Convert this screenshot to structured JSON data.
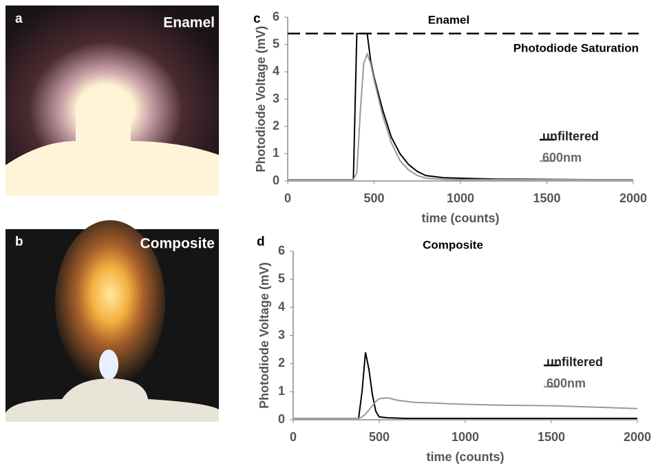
{
  "photos": [
    {
      "label": "a",
      "title": "Enamel"
    },
    {
      "label": "b",
      "title": "Composite"
    }
  ],
  "chart_data": [
    {
      "type": "line",
      "label": "c",
      "title": "Enamel",
      "x_label": "time (counts)",
      "y_label": "Photodiode Voltage (mV)",
      "saturation": {
        "value": 5.4,
        "label": "Photodiode Saturation"
      },
      "x": [
        0,
        380,
        400,
        420,
        440,
        460,
        480,
        500,
        550,
        600,
        650,
        700,
        750,
        800,
        900,
        1000,
        1200,
        1500,
        1750,
        2000
      ],
      "series": [
        {
          "name": "unfiltered",
          "color": "#000000",
          "values": [
            0.05,
            0.05,
            5.4,
            5.4,
            5.4,
            5.4,
            4.4,
            3.8,
            2.6,
            1.6,
            1.0,
            0.6,
            0.35,
            0.2,
            0.12,
            0.1,
            0.07,
            0.06,
            0.05,
            0.05
          ]
        },
        {
          "name": "600nm",
          "color": "#999999",
          "values": [
            0.05,
            0.05,
            0.3,
            2.5,
            4.3,
            4.65,
            4.3,
            3.7,
            2.4,
            1.4,
            0.75,
            0.4,
            0.2,
            0.1,
            0.06,
            0.05,
            0.05,
            0.05,
            0.05,
            0.05
          ]
        }
      ],
      "xlim": [
        0,
        2000
      ],
      "xticks": [
        0,
        500,
        1000,
        1500,
        2000
      ],
      "ylim": [
        0,
        6
      ],
      "yticks": [
        0,
        1,
        2,
        3,
        4,
        5,
        6
      ]
    },
    {
      "type": "line",
      "label": "d",
      "title": "Composite",
      "x_label": "time (counts)",
      "y_label": "Photodiode Voltage (mV)",
      "x": [
        0,
        380,
        400,
        420,
        440,
        460,
        480,
        500,
        550,
        600,
        650,
        700,
        750,
        800,
        900,
        1000,
        1200,
        1500,
        1750,
        2000
      ],
      "series": [
        {
          "name": "unfiltered",
          "color": "#000000",
          "values": [
            0.05,
            0.05,
            1.0,
            2.4,
            1.8,
            0.9,
            0.3,
            0.1,
            0.07,
            0.06,
            0.05,
            0.05,
            0.05,
            0.05,
            0.05,
            0.05,
            0.05,
            0.05,
            0.05,
            0.05
          ]
        },
        {
          "name": "600nm",
          "color": "#999999",
          "values": [
            0.05,
            0.05,
            0.1,
            0.2,
            0.35,
            0.5,
            0.65,
            0.75,
            0.78,
            0.7,
            0.66,
            0.62,
            0.61,
            0.6,
            0.57,
            0.55,
            0.52,
            0.5,
            0.45,
            0.4
          ]
        }
      ],
      "xlim": [
        0,
        2000
      ],
      "xticks": [
        0,
        500,
        1000,
        1500,
        2000
      ],
      "ylim": [
        0,
        6
      ],
      "yticks": [
        0,
        1,
        2,
        3,
        4,
        5,
        6
      ]
    }
  ]
}
